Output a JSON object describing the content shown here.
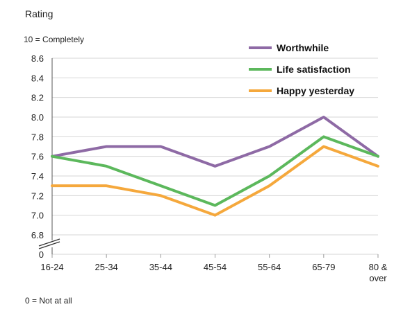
{
  "chart_data": {
    "type": "line",
    "ylabel": "Rating",
    "y_top_note": "10 = Completely",
    "y_bottom_note": "0 = Not  at all",
    "categories": [
      "16-24",
      "25-34",
      "35-44",
      "45-54",
      "55-64",
      "65-79",
      "80 &\nover"
    ],
    "ylim": [
      6.8,
      8.6
    ],
    "yticks": [
      "8.6",
      "8.4",
      "8.2",
      "8.0",
      "7.8",
      "7.6",
      "7.4",
      "7.2",
      "7.0",
      "6.8"
    ],
    "y_zero_label": "0",
    "grid": true,
    "legend_position": "top-right",
    "series": [
      {
        "name": "Worthwhile",
        "color": "#8e6aa5",
        "values": [
          7.6,
          7.7,
          7.7,
          7.5,
          7.7,
          8.0,
          7.6
        ]
      },
      {
        "name": "Life satisfaction",
        "color": "#5cb85c",
        "values": [
          7.6,
          7.5,
          7.3,
          7.1,
          7.4,
          7.8,
          7.6
        ]
      },
      {
        "name": "Happy yesterday",
        "color": "#f5a83c",
        "values": [
          7.3,
          7.3,
          7.2,
          7.0,
          7.3,
          7.7,
          7.5
        ]
      }
    ]
  }
}
